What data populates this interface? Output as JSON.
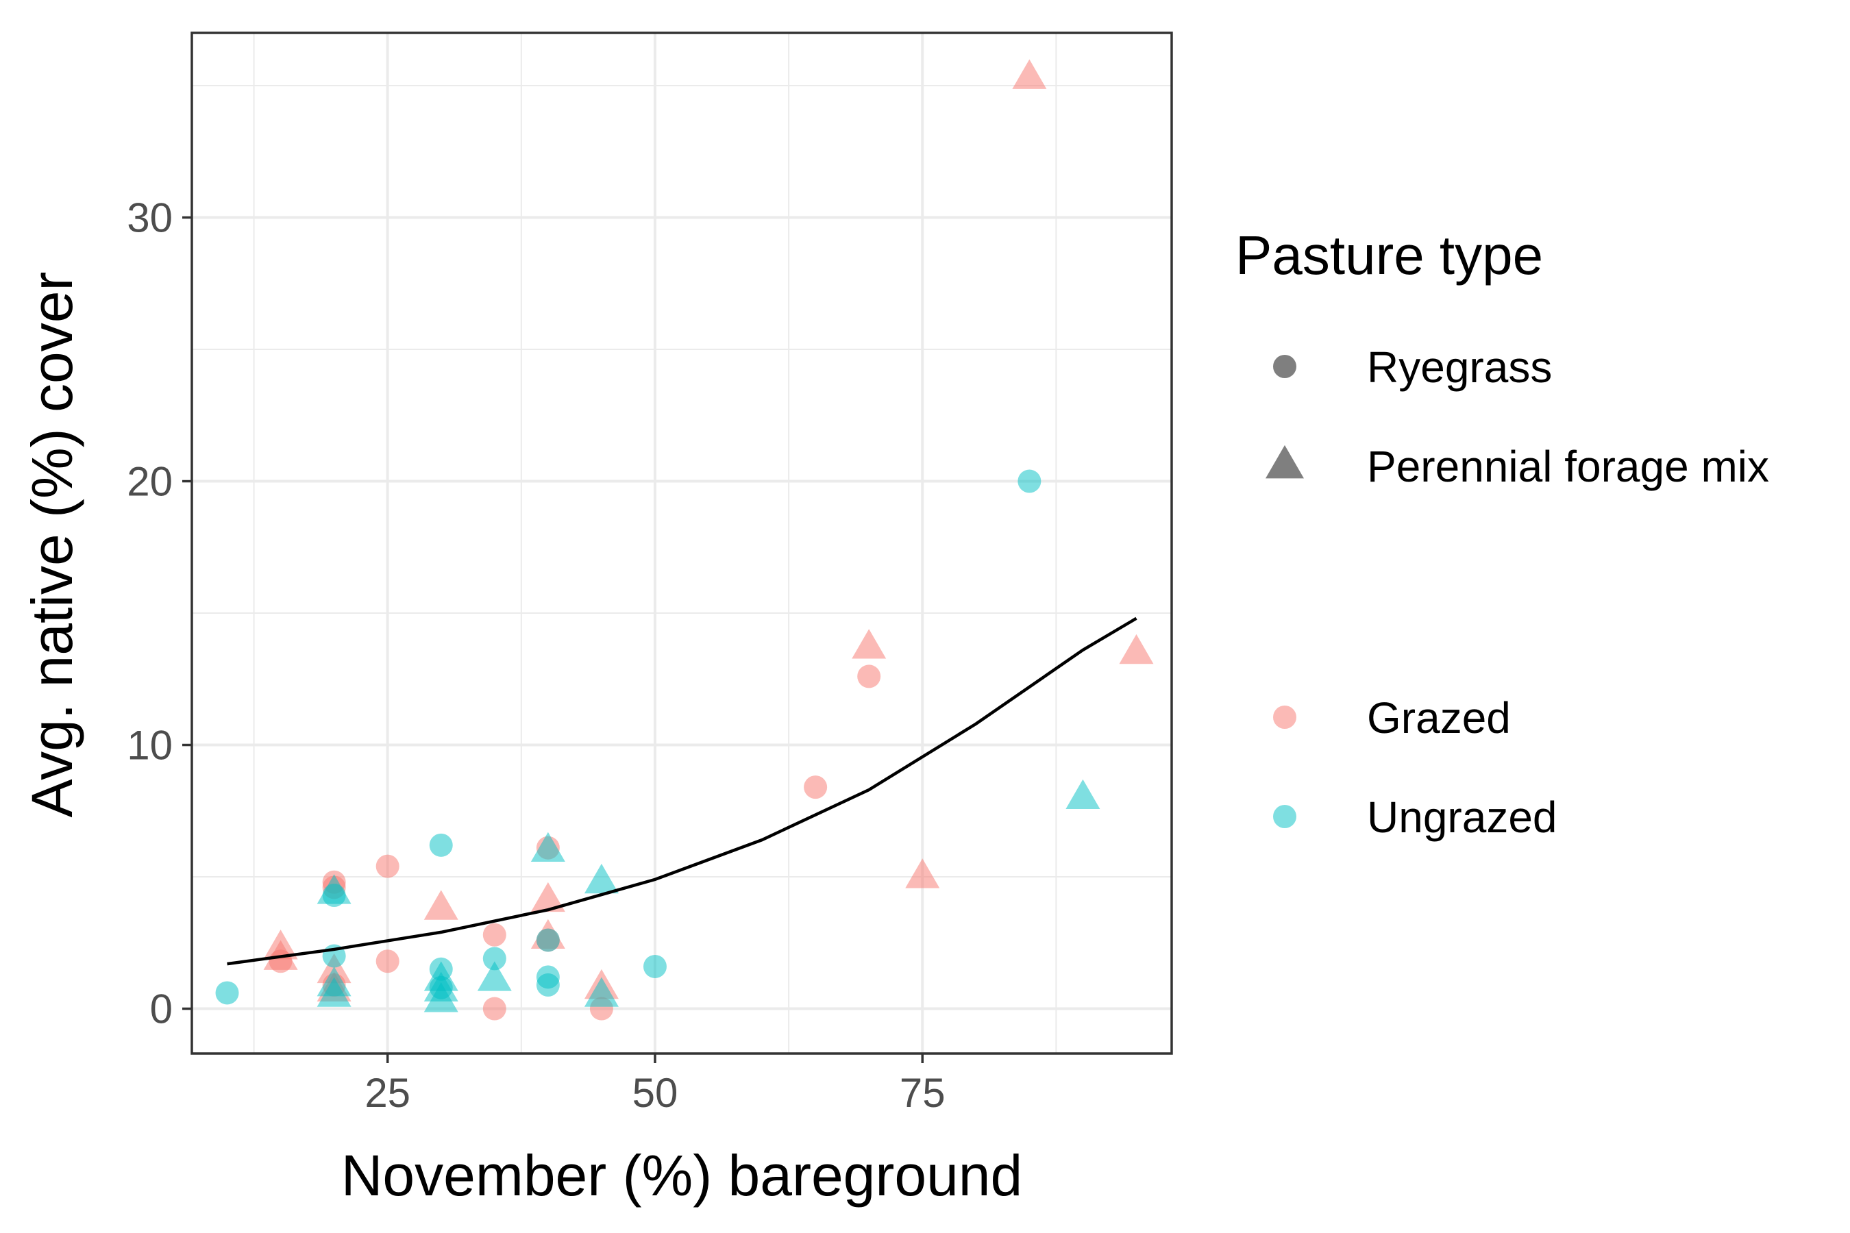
{
  "chart_data": {
    "type": "scatter",
    "xlabel": "November (%) bareground",
    "ylabel": "Avg. native (%) cover",
    "xlim": [
      6.7,
      98.3
    ],
    "ylim": [
      -1.7,
      37
    ],
    "xticks": [
      25,
      50,
      75
    ],
    "yticks": [
      0,
      10,
      20,
      30
    ],
    "grid": true,
    "legend_placement": "right",
    "legend": {
      "shape_title": "Pasture type",
      "shape_entries": [
        {
          "label": "Ryegrass",
          "shape": "circle"
        },
        {
          "label": "Perennial forage mix",
          "shape": "triangle"
        }
      ],
      "color_entries": [
        {
          "label": "Grazed",
          "color": "#F8766D"
        },
        {
          "label": "Ungrazed",
          "color": "#00BFC4"
        }
      ]
    },
    "points": [
      {
        "x": 15,
        "y": 1.8,
        "group": "Grazed",
        "shape": "circle"
      },
      {
        "x": 20,
        "y": 4.8,
        "group": "Grazed",
        "shape": "circle"
      },
      {
        "x": 20,
        "y": 4.6,
        "group": "Grazed",
        "shape": "circle"
      },
      {
        "x": 20,
        "y": 0.9,
        "group": "Grazed",
        "shape": "circle"
      },
      {
        "x": 25,
        "y": 5.4,
        "group": "Grazed",
        "shape": "circle"
      },
      {
        "x": 25,
        "y": 1.8,
        "group": "Grazed",
        "shape": "circle"
      },
      {
        "x": 35,
        "y": 2.8,
        "group": "Grazed",
        "shape": "circle"
      },
      {
        "x": 35,
        "y": 0.0,
        "group": "Grazed",
        "shape": "circle"
      },
      {
        "x": 40,
        "y": 6.1,
        "group": "Grazed",
        "shape": "circle"
      },
      {
        "x": 40,
        "y": 2.6,
        "group": "Grazed",
        "shape": "circle"
      },
      {
        "x": 45,
        "y": 0.0,
        "group": "Grazed",
        "shape": "circle"
      },
      {
        "x": 65,
        "y": 8.4,
        "group": "Grazed",
        "shape": "circle"
      },
      {
        "x": 70,
        "y": 12.6,
        "group": "Grazed",
        "shape": "circle"
      },
      {
        "x": 15,
        "y": 2.3,
        "group": "Grazed",
        "shape": "triangle"
      },
      {
        "x": 15,
        "y": 1.9,
        "group": "Grazed",
        "shape": "triangle"
      },
      {
        "x": 20,
        "y": 1.4,
        "group": "Grazed",
        "shape": "triangle"
      },
      {
        "x": 20,
        "y": 0.7,
        "group": "Grazed",
        "shape": "triangle"
      },
      {
        "x": 30,
        "y": 3.8,
        "group": "Grazed",
        "shape": "triangle"
      },
      {
        "x": 40,
        "y": 4.1,
        "group": "Grazed",
        "shape": "triangle"
      },
      {
        "x": 40,
        "y": 2.7,
        "group": "Grazed",
        "shape": "triangle"
      },
      {
        "x": 45,
        "y": 0.8,
        "group": "Grazed",
        "shape": "triangle"
      },
      {
        "x": 70,
        "y": 13.7,
        "group": "Grazed",
        "shape": "triangle"
      },
      {
        "x": 75,
        "y": 5.0,
        "group": "Grazed",
        "shape": "triangle"
      },
      {
        "x": 85,
        "y": 35.3,
        "group": "Grazed",
        "shape": "triangle"
      },
      {
        "x": 95,
        "y": 13.5,
        "group": "Grazed",
        "shape": "triangle"
      },
      {
        "x": 10,
        "y": 0.6,
        "group": "Ungrazed",
        "shape": "circle"
      },
      {
        "x": 20,
        "y": 4.3,
        "group": "Ungrazed",
        "shape": "circle"
      },
      {
        "x": 20,
        "y": 2.0,
        "group": "Ungrazed",
        "shape": "circle"
      },
      {
        "x": 30,
        "y": 6.2,
        "group": "Ungrazed",
        "shape": "circle"
      },
      {
        "x": 30,
        "y": 1.5,
        "group": "Ungrazed",
        "shape": "circle"
      },
      {
        "x": 30,
        "y": 0.8,
        "group": "Ungrazed",
        "shape": "circle"
      },
      {
        "x": 35,
        "y": 1.9,
        "group": "Ungrazed",
        "shape": "circle"
      },
      {
        "x": 40,
        "y": 2.6,
        "group": "Ungrazed",
        "shape": "circle"
      },
      {
        "x": 40,
        "y": 1.2,
        "group": "Ungrazed",
        "shape": "circle"
      },
      {
        "x": 40,
        "y": 0.9,
        "group": "Ungrazed",
        "shape": "circle"
      },
      {
        "x": 50,
        "y": 1.6,
        "group": "Ungrazed",
        "shape": "circle"
      },
      {
        "x": 85,
        "y": 20.0,
        "group": "Ungrazed",
        "shape": "circle"
      },
      {
        "x": 20,
        "y": 4.4,
        "group": "Ungrazed",
        "shape": "triangle"
      },
      {
        "x": 20,
        "y": 0.9,
        "group": "Ungrazed",
        "shape": "triangle"
      },
      {
        "x": 20,
        "y": 0.5,
        "group": "Ungrazed",
        "shape": "triangle"
      },
      {
        "x": 30,
        "y": 1.1,
        "group": "Ungrazed",
        "shape": "triangle"
      },
      {
        "x": 30,
        "y": 0.7,
        "group": "Ungrazed",
        "shape": "triangle"
      },
      {
        "x": 30,
        "y": 0.3,
        "group": "Ungrazed",
        "shape": "triangle"
      },
      {
        "x": 35,
        "y": 1.1,
        "group": "Ungrazed",
        "shape": "triangle"
      },
      {
        "x": 40,
        "y": 6.0,
        "group": "Ungrazed",
        "shape": "triangle"
      },
      {
        "x": 45,
        "y": 4.8,
        "group": "Ungrazed",
        "shape": "triangle"
      },
      {
        "x": 45,
        "y": 0.5,
        "group": "Ungrazed",
        "shape": "triangle"
      },
      {
        "x": 90,
        "y": 8.0,
        "group": "Ungrazed",
        "shape": "triangle"
      }
    ],
    "trend_line": {
      "color": "#000000",
      "points": [
        {
          "x": 10,
          "y": 1.7
        },
        {
          "x": 20,
          "y": 2.25
        },
        {
          "x": 30,
          "y": 2.9
        },
        {
          "x": 40,
          "y": 3.75
        },
        {
          "x": 50,
          "y": 4.9
        },
        {
          "x": 60,
          "y": 6.4
        },
        {
          "x": 70,
          "y": 8.3
        },
        {
          "x": 80,
          "y": 10.8
        },
        {
          "x": 90,
          "y": 13.6
        },
        {
          "x": 95,
          "y": 14.8
        }
      ]
    }
  }
}
